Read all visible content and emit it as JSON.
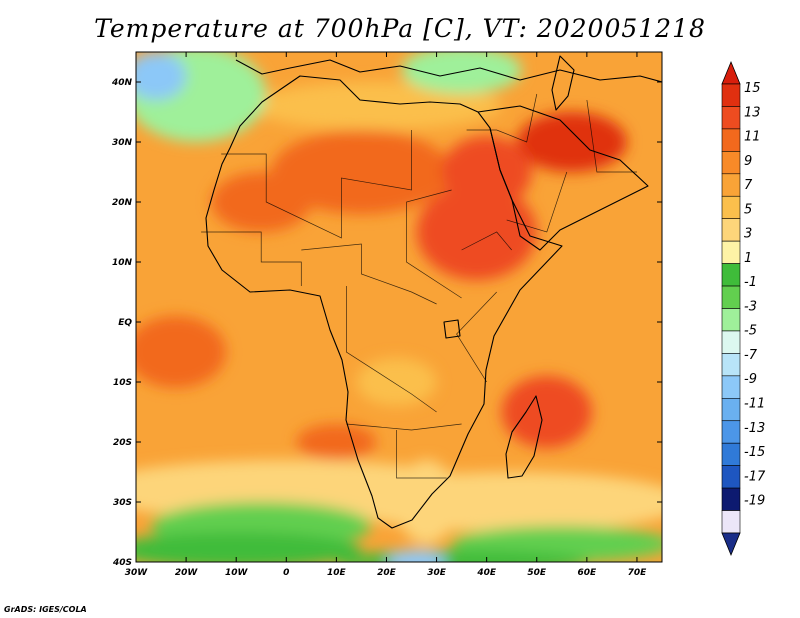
{
  "title": "Temperature at 700hPa [C], VT: 2020051218",
  "credit": "GrADS: IGES/COLA",
  "map": {
    "projection": "latlon",
    "lon_range": [
      -30,
      75
    ],
    "lat_range": [
      -40,
      45
    ],
    "lat_ticks": [
      {
        "value": 40,
        "label": "40N"
      },
      {
        "value": 30,
        "label": "30N"
      },
      {
        "value": 20,
        "label": "20N"
      },
      {
        "value": 10,
        "label": "10N"
      },
      {
        "value": 0,
        "label": "EQ"
      },
      {
        "value": -10,
        "label": "10S"
      },
      {
        "value": -20,
        "label": "20S"
      },
      {
        "value": -30,
        "label": "30S"
      },
      {
        "value": -40,
        "label": "40S"
      }
    ],
    "lon_ticks": [
      {
        "value": -30,
        "label": "30W"
      },
      {
        "value": -20,
        "label": "20W"
      },
      {
        "value": -10,
        "label": "10W"
      },
      {
        "value": 0,
        "label": "0"
      },
      {
        "value": 10,
        "label": "10E"
      },
      {
        "value": 20,
        "label": "20E"
      },
      {
        "value": 30,
        "label": "30E"
      },
      {
        "value": 40,
        "label": "40E"
      },
      {
        "value": 50,
        "label": "50E"
      },
      {
        "value": 60,
        "label": "60E"
      },
      {
        "value": 70,
        "label": "70E"
      }
    ],
    "base_color": "#f9a337",
    "fields": [
      {
        "lon": 38,
        "lat": 15,
        "rx": 12,
        "ry": 8,
        "color": "#ee4c20"
      },
      {
        "lon": 57,
        "lat": 30,
        "rx": 11,
        "ry": 5,
        "color": "#e03010"
      },
      {
        "lon": 15,
        "lat": 25,
        "rx": 18,
        "ry": 7,
        "color": "#f2691d"
      },
      {
        "lon": -5,
        "lat": 20,
        "rx": 10,
        "ry": 5,
        "color": "#f2691d"
      },
      {
        "lon": 40,
        "lat": 25,
        "rx": 9,
        "ry": 6,
        "color": "#ee4c20"
      },
      {
        "lon": 52,
        "lat": -15,
        "rx": 9,
        "ry": 6,
        "color": "#ee4c20"
      },
      {
        "lon": -22,
        "lat": -5,
        "rx": 10,
        "ry": 6,
        "color": "#f2691d"
      },
      {
        "lon": 10,
        "lat": -20,
        "rx": 8,
        "ry": 3,
        "color": "#f2691d"
      },
      {
        "lon": 22,
        "lat": -10,
        "rx": 8,
        "ry": 4,
        "color": "#fbbf4c"
      },
      {
        "lon": 0,
        "lat": -28,
        "rx": 40,
        "ry": 5,
        "color": "#fdd57a"
      },
      {
        "lon": 45,
        "lat": -30,
        "rx": 35,
        "ry": 5,
        "color": "#fdd57a"
      },
      {
        "lon": 28,
        "lat": -30,
        "rx": 6,
        "ry": 7,
        "color": "#fdd57a"
      },
      {
        "lon": 18,
        "lat": 36,
        "rx": 25,
        "ry": 4,
        "color": "#fbbf4c"
      },
      {
        "lon": -5,
        "lat": -34,
        "rx": 22,
        "ry": 4,
        "color": "#62cf4f"
      },
      {
        "lon": 55,
        "lat": -37,
        "rx": 22,
        "ry": 3,
        "color": "#62cf4f"
      },
      {
        "lon": -10,
        "lat": -38,
        "rx": 25,
        "ry": 3,
        "color": "#3fbc3a"
      },
      {
        "lon": 35,
        "lat": -40,
        "rx": 25,
        "ry": 2,
        "color": "#3fbc3a"
      },
      {
        "lon": -18,
        "lat": 38,
        "rx": 14,
        "ry": 8,
        "color": "#9ff09a"
      },
      {
        "lon": 35,
        "lat": 42,
        "rx": 12,
        "ry": 4,
        "color": "#9ff09a"
      },
      {
        "lon": -26,
        "lat": 41,
        "rx": 6,
        "ry": 4,
        "color": "#8cc8f8"
      },
      {
        "lon": 26,
        "lat": -40,
        "rx": 6,
        "ry": 2,
        "color": "#8cc8f8"
      }
    ],
    "country_borders": [
      [
        [
          -13,
          28
        ],
        [
          -4,
          28
        ],
        [
          -4,
          20
        ],
        [
          11,
          14
        ],
        [
          11,
          24
        ],
        [
          25,
          22
        ],
        [
          25,
          32
        ]
      ],
      [
        [
          -17,
          15
        ],
        [
          -5,
          15
        ],
        [
          -5,
          10
        ],
        [
          3,
          10
        ],
        [
          3,
          6
        ]
      ],
      [
        [
          3,
          12
        ],
        [
          15,
          13
        ],
        [
          15,
          8
        ],
        [
          25,
          5
        ],
        [
          30,
          3
        ]
      ],
      [
        [
          12,
          6
        ],
        [
          12,
          -5
        ],
        [
          25,
          -12
        ],
        [
          30,
          -15
        ]
      ],
      [
        [
          22,
          -18
        ],
        [
          22,
          -26
        ],
        [
          32,
          -26
        ]
      ],
      [
        [
          33,
          22
        ],
        [
          24,
          20
        ],
        [
          24,
          10
        ],
        [
          35,
          4
        ]
      ],
      [
        [
          35,
          12
        ],
        [
          42,
          15
        ],
        [
          45,
          12
        ]
      ],
      [
        [
          42,
          5
        ],
        [
          34,
          -2
        ],
        [
          40,
          -10
        ]
      ],
      [
        [
          12,
          -17
        ],
        [
          25,
          -18
        ],
        [
          35,
          -17
        ]
      ],
      [
        [
          36,
          32
        ],
        [
          42,
          32
        ],
        [
          48,
          30
        ],
        [
          50,
          38
        ]
      ],
      [
        [
          56,
          25
        ],
        [
          52,
          15
        ],
        [
          44,
          17
        ]
      ],
      [
        [
          60,
          37
        ],
        [
          62,
          25
        ],
        [
          70,
          25
        ]
      ]
    ]
  },
  "colorbar": {
    "title": "",
    "levels": [
      {
        "label": "15",
        "color": "#e03010"
      },
      {
        "label": "13",
        "color": "#ee4c20"
      },
      {
        "label": "11",
        "color": "#f2691d"
      },
      {
        "label": "9",
        "color": "#f88a28"
      },
      {
        "label": "7",
        "color": "#f9a337"
      },
      {
        "label": "5",
        "color": "#fbbf4c"
      },
      {
        "label": "3",
        "color": "#fdd57a"
      },
      {
        "label": "1",
        "color": "#fef3a6"
      },
      {
        "label": "-1",
        "color": "#3fbc3a"
      },
      {
        "label": "-3",
        "color": "#62cf4f"
      },
      {
        "label": "-5",
        "color": "#9ff09a"
      },
      {
        "label": "-7",
        "color": "#dcf8f0"
      },
      {
        "label": "-9",
        "color": "#b8e4f8"
      },
      {
        "label": "-11",
        "color": "#8cc8f8"
      },
      {
        "label": "-13",
        "color": "#6ab0f0"
      },
      {
        "label": "-15",
        "color": "#4c96e8"
      },
      {
        "label": "-17",
        "color": "#307ad8"
      },
      {
        "label": "-19",
        "color": "#1e56c0"
      }
    ],
    "top_color": "#d81e0c",
    "bottom_color": "#1a2d88",
    "extra_colors": [
      "#0d1a70",
      "#ece6f8"
    ]
  }
}
